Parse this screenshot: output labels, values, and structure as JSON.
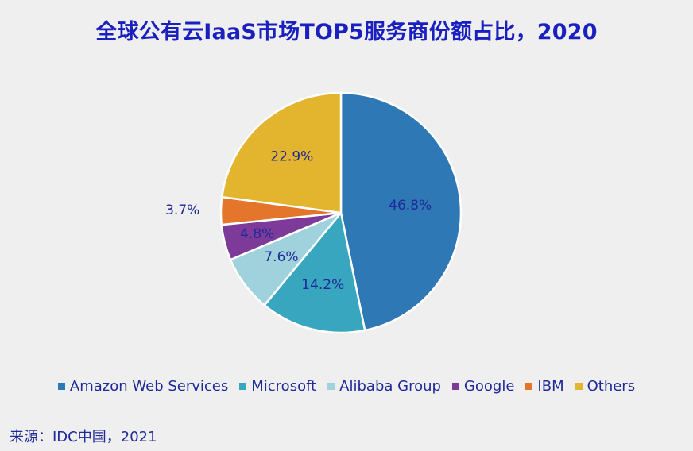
{
  "chart_data": {
    "type": "pie",
    "title": "全球公有云IaaS市场TOP5服务商份额占比，2020",
    "categories": [
      "Amazon Web Services",
      "Microsoft",
      "Alibaba Group",
      "Google",
      "IBM",
      "Others"
    ],
    "values": [
      46.8,
      14.2,
      7.6,
      4.8,
      3.7,
      22.9
    ],
    "data_labels": [
      "46.8%",
      "14.2%",
      "7.6%",
      "4.8%",
      "3.7%",
      "22.9%"
    ],
    "colors": [
      "#2e78b5",
      "#39a6c0",
      "#9fd2dc",
      "#7d3a98",
      "#e4762c",
      "#e3b52f"
    ],
    "legend_position": "bottom",
    "grid": false
  },
  "source": "来源：IDC中国，2021"
}
